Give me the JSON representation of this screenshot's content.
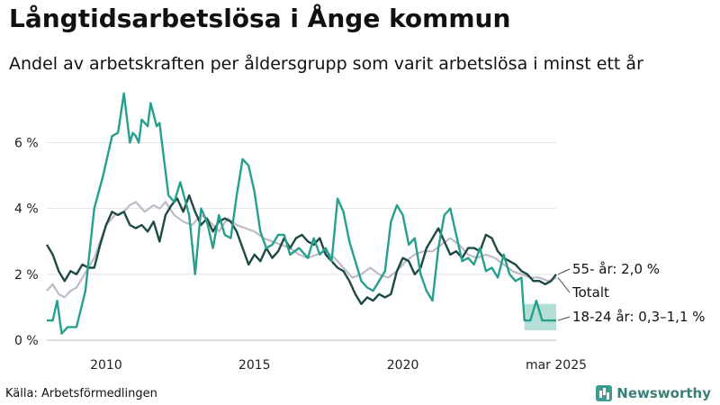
{
  "header": {
    "title": "Långtidsarbetslösa i Ånge kommun",
    "subtitle": "Andel av arbetskraften per åldersgrupp som varit arbetslösa i minst ett år"
  },
  "footer": {
    "source": "Källa: Arbetsförmedlingen",
    "brand": "Newsworthy"
  },
  "chart_data": {
    "type": "line",
    "title": "Långtidsarbetslösa i Ånge kommun",
    "subtitle": "Andel av arbetskraften per åldersgrupp som varit arbetslösa i minst ett år",
    "xlabel": "",
    "ylabel": "",
    "xlim": [
      2008.0,
      2025.17
    ],
    "ylim": [
      0,
      7.6
    ],
    "x_ticks": [
      {
        "value": 2010,
        "label": "2010"
      },
      {
        "value": 2015,
        "label": "2015"
      },
      {
        "value": 2020,
        "label": "2020"
      },
      {
        "value": 2025.17,
        "label": "mar 2025"
      }
    ],
    "y_ticks": [
      {
        "value": 0,
        "label": "0 %"
      },
      {
        "value": 2,
        "label": "2 %"
      },
      {
        "value": 4,
        "label": "4 %"
      },
      {
        "value": 6,
        "label": "6 %"
      }
    ],
    "grid": true,
    "legend": "direct-labels-right",
    "series": [
      {
        "name": "Totalt",
        "label": "Totalt",
        "color": "#bfbac8",
        "x": [
          2008.0,
          2008.2,
          2008.4,
          2008.6,
          2008.8,
          2009.0,
          2009.2,
          2009.4,
          2009.6,
          2009.8,
          2010.0,
          2010.3,
          2010.6,
          2010.8,
          2011.0,
          2011.3,
          2011.6,
          2011.8,
          2012.0,
          2012.3,
          2012.6,
          2012.9,
          2013.2,
          2013.5,
          2013.8,
          2014.1,
          2014.4,
          2014.7,
          2015.0,
          2015.3,
          2015.6,
          2015.9,
          2016.2,
          2016.5,
          2016.8,
          2017.1,
          2017.4,
          2017.7,
          2018.0,
          2018.3,
          2018.6,
          2018.9,
          2019.2,
          2019.5,
          2019.8,
          2020.1,
          2020.4,
          2020.7,
          2021.0,
          2021.3,
          2021.6,
          2021.9,
          2022.2,
          2022.5,
          2022.8,
          2023.1,
          2023.4,
          2023.7,
          2024.0,
          2024.3,
          2024.6,
          2024.9,
          2025.17
        ],
        "values": [
          1.5,
          1.7,
          1.4,
          1.3,
          1.5,
          1.6,
          1.9,
          2.2,
          2.5,
          3.0,
          3.5,
          3.8,
          3.9,
          4.1,
          4.2,
          3.9,
          4.1,
          4.0,
          4.2,
          3.8,
          3.6,
          3.5,
          3.8,
          3.6,
          3.3,
          3.7,
          3.5,
          3.4,
          3.3,
          3.1,
          3.0,
          2.9,
          2.8,
          2.6,
          2.5,
          2.6,
          2.7,
          2.5,
          2.2,
          1.9,
          2.0,
          2.2,
          2.0,
          1.9,
          2.1,
          2.4,
          2.6,
          2.7,
          2.7,
          2.9,
          3.1,
          2.9,
          2.6,
          2.5,
          2.6,
          2.5,
          2.3,
          2.1,
          2.0,
          1.9,
          1.9,
          1.8,
          1.9
        ]
      },
      {
        "name": "55- år",
        "label": "55- år: 2,0 %",
        "color": "#1e4a45",
        "x": [
          2008.0,
          2008.2,
          2008.4,
          2008.6,
          2008.8,
          2009.0,
          2009.2,
          2009.4,
          2009.6,
          2009.8,
          2010.0,
          2010.2,
          2010.4,
          2010.6,
          2010.8,
          2011.0,
          2011.2,
          2011.4,
          2011.6,
          2011.8,
          2012.0,
          2012.2,
          2012.4,
          2012.6,
          2012.8,
          2013.0,
          2013.2,
          2013.4,
          2013.6,
          2013.8,
          2014.0,
          2014.2,
          2014.4,
          2014.6,
          2014.8,
          2015.0,
          2015.2,
          2015.4,
          2015.6,
          2015.8,
          2016.0,
          2016.2,
          2016.4,
          2016.6,
          2016.8,
          2017.0,
          2017.2,
          2017.4,
          2017.6,
          2017.8,
          2018.0,
          2018.2,
          2018.4,
          2018.6,
          2018.8,
          2019.0,
          2019.2,
          2019.4,
          2019.6,
          2019.8,
          2020.0,
          2020.2,
          2020.4,
          2020.6,
          2020.8,
          2021.0,
          2021.2,
          2021.4,
          2021.6,
          2021.8,
          2022.0,
          2022.2,
          2022.4,
          2022.6,
          2022.8,
          2023.0,
          2023.2,
          2023.4,
          2023.6,
          2023.8,
          2024.0,
          2024.2,
          2024.4,
          2024.6,
          2024.8,
          2025.0,
          2025.17
        ],
        "values": [
          2.9,
          2.6,
          2.1,
          1.8,
          2.1,
          2.0,
          2.3,
          2.2,
          2.2,
          2.9,
          3.5,
          3.9,
          3.8,
          3.9,
          3.5,
          3.4,
          3.5,
          3.3,
          3.6,
          3.0,
          3.8,
          4.1,
          4.3,
          3.9,
          4.4,
          3.9,
          3.5,
          3.7,
          3.3,
          3.6,
          3.7,
          3.6,
          3.3,
          2.8,
          2.3,
          2.6,
          2.4,
          2.8,
          2.5,
          2.7,
          3.1,
          2.8,
          3.1,
          3.2,
          3.0,
          2.9,
          3.1,
          2.6,
          2.4,
          2.2,
          2.1,
          1.8,
          1.4,
          1.1,
          1.3,
          1.2,
          1.4,
          1.3,
          1.4,
          2.1,
          2.5,
          2.4,
          2.0,
          2.2,
          2.8,
          3.1,
          3.4,
          3.0,
          2.6,
          2.7,
          2.5,
          2.8,
          2.8,
          2.7,
          3.2,
          3.1,
          2.7,
          2.5,
          2.4,
          2.3,
          2.1,
          2.0,
          1.8,
          1.8,
          1.7,
          1.8,
          2.0
        ]
      },
      {
        "name": "18-24 år",
        "label": "18-24 år: 0,3–1,1 %",
        "color": "#26a08d",
        "band_color": "#a7d9cf",
        "band": {
          "x": [
            2024.1,
            2025.17
          ],
          "low": 0.3,
          "high": 1.1
        },
        "x": [
          2008.0,
          2008.2,
          2008.35,
          2008.5,
          2008.7,
          2008.85,
          2009.0,
          2009.3,
          2009.6,
          2009.9,
          2010.2,
          2010.4,
          2010.6,
          2010.8,
          2010.9,
          2011.0,
          2011.1,
          2011.2,
          2011.4,
          2011.5,
          2011.7,
          2011.8,
          2011.95,
          2012.1,
          2012.3,
          2012.5,
          2012.8,
          2013.0,
          2013.2,
          2013.4,
          2013.6,
          2013.8,
          2014.0,
          2014.2,
          2014.4,
          2014.6,
          2014.8,
          2015.0,
          2015.2,
          2015.4,
          2015.6,
          2015.8,
          2016.0,
          2016.2,
          2016.5,
          2016.8,
          2017.0,
          2017.2,
          2017.4,
          2017.6,
          2017.8,
          2018.0,
          2018.2,
          2018.4,
          2018.6,
          2018.8,
          2019.0,
          2019.2,
          2019.4,
          2019.6,
          2019.8,
          2020.0,
          2020.2,
          2020.4,
          2020.6,
          2020.8,
          2021.0,
          2021.2,
          2021.4,
          2021.6,
          2021.8,
          2022.0,
          2022.2,
          2022.4,
          2022.6,
          2022.8,
          2023.0,
          2023.2,
          2023.4,
          2023.6,
          2023.8,
          2024.0,
          2024.1,
          2024.3,
          2024.5,
          2024.7,
          2024.9,
          2025.17
        ],
        "values": [
          0.6,
          0.6,
          1.2,
          0.2,
          0.4,
          0.4,
          0.4,
          1.5,
          4.0,
          5.0,
          6.2,
          6.3,
          7.5,
          6.0,
          6.3,
          6.2,
          6.0,
          6.7,
          6.5,
          7.2,
          6.5,
          6.6,
          5.5,
          4.4,
          4.2,
          4.8,
          3.8,
          2.0,
          4.0,
          3.6,
          2.8,
          3.8,
          3.2,
          3.1,
          4.4,
          5.5,
          5.3,
          4.5,
          3.3,
          2.8,
          2.9,
          3.2,
          3.2,
          2.6,
          2.8,
          2.5,
          3.1,
          2.6,
          2.8,
          2.4,
          4.3,
          3.9,
          3.0,
          2.4,
          1.8,
          1.6,
          1.5,
          1.8,
          2.1,
          3.6,
          4.1,
          3.8,
          2.9,
          3.1,
          2.0,
          1.5,
          1.2,
          2.8,
          3.8,
          4.0,
          3.2,
          2.4,
          2.5,
          2.3,
          2.8,
          2.1,
          2.2,
          1.9,
          2.6,
          2.0,
          1.8,
          1.9,
          0.6,
          0.6,
          1.2,
          0.6,
          0.6,
          0.6
        ]
      }
    ]
  }
}
